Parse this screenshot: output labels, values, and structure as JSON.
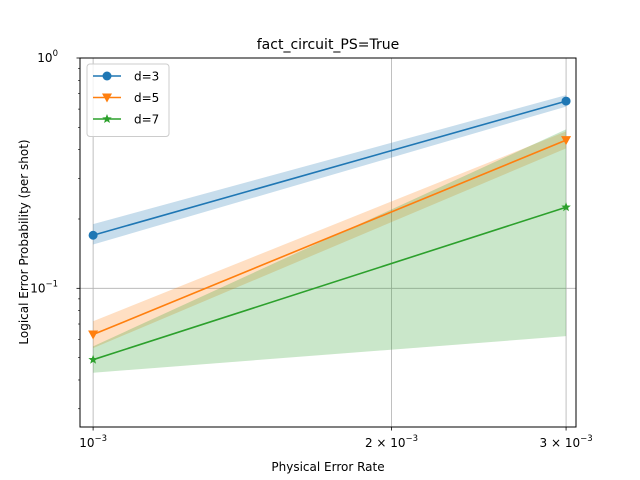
{
  "chart_data": {
    "type": "line",
    "title": "fact_circuit_PS=True",
    "xlabel": "Physical Error Rate",
    "ylabel": "Logical Error Probability (per shot)",
    "xscale": "log",
    "yscale": "log",
    "xlim": [
      0.00097,
      0.00307
    ],
    "ylim": [
      0.025,
      1.0
    ],
    "xticks": [
      {
        "value": 0.001,
        "base": "10",
        "exp": "−3",
        "coef": ""
      },
      {
        "value": 0.002,
        "base": "10",
        "exp": "−3",
        "coef": "2 × "
      },
      {
        "value": 0.003,
        "base": "10",
        "exp": "−3",
        "coef": "3 × "
      }
    ],
    "yticks": [
      {
        "value": 0.1,
        "base": "10",
        "exp": "−1"
      },
      {
        "value": 1.0,
        "base": "10",
        "exp": "0"
      }
    ],
    "grid": true,
    "legend_position": "top-left",
    "series": [
      {
        "name": "d=3",
        "color": "#1f77b4",
        "marker": "circle",
        "x": [
          0.001,
          0.003
        ],
        "y": [
          0.17,
          0.65
        ],
        "band_low": [
          0.155,
          0.615
        ],
        "band_high": [
          0.19,
          0.69
        ]
      },
      {
        "name": "d=5",
        "color": "#ff7f0e",
        "marker": "triangle-down",
        "x": [
          0.001,
          0.003
        ],
        "y": [
          0.063,
          0.44
        ],
        "band_low": [
          0.055,
          0.405
        ],
        "band_high": [
          0.072,
          0.48
        ]
      },
      {
        "name": "d=7",
        "color": "#2ca02c",
        "marker": "star",
        "x": [
          0.001,
          0.003
        ],
        "y": [
          0.049,
          0.225
        ],
        "band_low": [
          0.043,
          0.062
        ],
        "band_high": [
          0.056,
          0.49
        ]
      }
    ]
  }
}
